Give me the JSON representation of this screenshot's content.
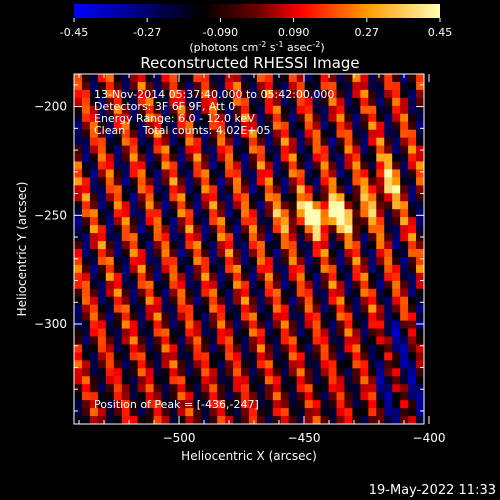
{
  "colorbar": {
    "ticks": [
      "-0.45",
      "-0.27",
      "-0.090",
      "0.090",
      "0.27",
      "0.45"
    ],
    "units_main": "(photons cm",
    "units_sup1": "-2",
    "units_mid": " s",
    "units_sup2": "-1",
    "units_end": " asec",
    "units_sup3": "-2",
    "units_close": ")",
    "stops": [
      "#0000ff",
      "#000000",
      "#6a0000",
      "#ff0000",
      "#ff9a00",
      "#ffffb4"
    ]
  },
  "chart_data": {
    "type": "heatmap",
    "title": "Reconstructed RHESSI Image",
    "xlabel": "Heliocentric X (arcsec)",
    "ylabel": "Heliocentric Y (arcsec)",
    "xlim": [
      -542,
      -402
    ],
    "ylim": [
      -346,
      -185
    ],
    "xticks": [
      -500,
      -450,
      -400
    ],
    "xtick_labels": [
      "−500",
      "−450",
      "−400"
    ],
    "yticks": [
      -200,
      -250,
      -300
    ],
    "ytick_labels": [
      "−200",
      "−250",
      "−300"
    ],
    "info": [
      "13-Nov-2014 05:37:40.000 to 05:42:00.000",
      "Detectors: 3F 6F 9F, Att 0",
      "Energy Range: 6.0 - 12.0 keV",
      "Clean     Total counts: 4.02E+05"
    ],
    "peak_label": "Position of Peak = [-436,-247]",
    "peak": [
      -436,
      -247
    ],
    "value_range": [
      -0.45,
      0.45
    ]
  },
  "footer": {
    "timestamp": "19-May-2022 11:33"
  }
}
